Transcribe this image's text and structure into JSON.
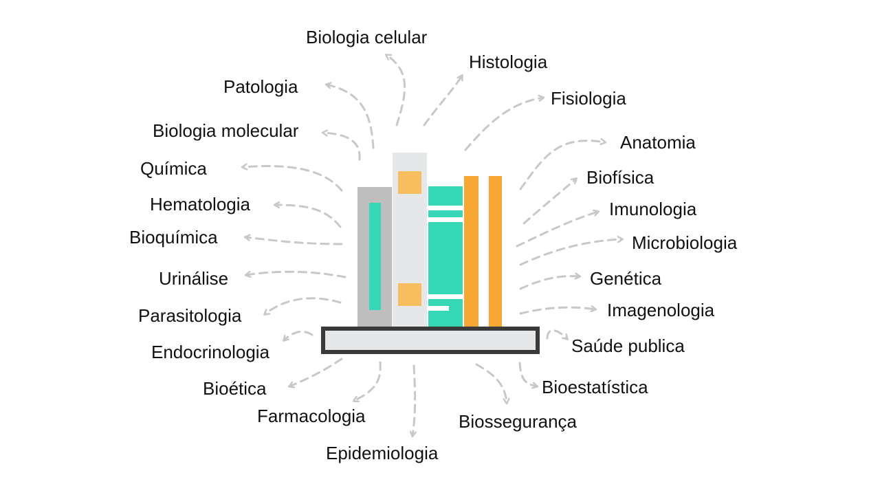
{
  "colors": {
    "arrow": "#c8c8c8",
    "text": "#111111",
    "shelf_border": "#3a3a3a",
    "shelf_fill": "#e6e7e8",
    "book_gray": "#bebebe",
    "book_light": "#e6e7e8",
    "accent_green": "#36d7b7",
    "accent_orange": "#f7a834",
    "accent_orange_light": "#f7bd5e"
  },
  "icon": "books-on-shelf-icon",
  "topics": [
    {
      "id": "biologia-celular",
      "label": "Biologia celular"
    },
    {
      "id": "histologia",
      "label": "Histologia"
    },
    {
      "id": "patologia",
      "label": "Patologia"
    },
    {
      "id": "fisiologia",
      "label": "Fisiologia"
    },
    {
      "id": "biologia-molecular",
      "label": "Biologia molecular"
    },
    {
      "id": "anatomia",
      "label": "Anatomia"
    },
    {
      "id": "quimica",
      "label": "Química"
    },
    {
      "id": "biofisica",
      "label": "Biofísica"
    },
    {
      "id": "hematologia",
      "label": "Hematologia"
    },
    {
      "id": "imunologia",
      "label": "Imunologia"
    },
    {
      "id": "bioquimica",
      "label": "Bioquímica"
    },
    {
      "id": "microbiologia",
      "label": "Microbiologia"
    },
    {
      "id": "urinalise",
      "label": "Urinálise"
    },
    {
      "id": "genetica",
      "label": "Genética"
    },
    {
      "id": "parasitologia",
      "label": "Parasitologia"
    },
    {
      "id": "imagenologia",
      "label": "Imagenologia"
    },
    {
      "id": "endocrinologia",
      "label": "Endocrinologia"
    },
    {
      "id": "saude-publica",
      "label": "Saúde publica"
    },
    {
      "id": "bioetica",
      "label": "Bioética"
    },
    {
      "id": "bioestatistica",
      "label": "Bioestatística"
    },
    {
      "id": "farmacologia",
      "label": "Farmacologia"
    },
    {
      "id": "biosseguranca",
      "label": "Biossegurança"
    },
    {
      "id": "epidemiologia",
      "label": "Epidemiologia"
    }
  ]
}
